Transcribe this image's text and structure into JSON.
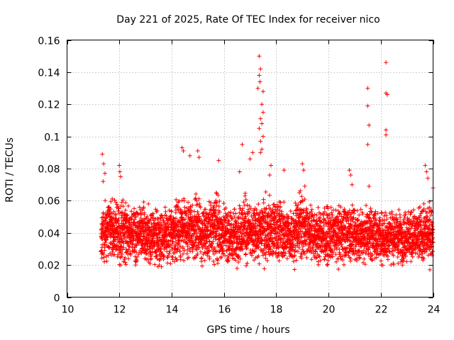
{
  "chart_data": {
    "type": "scatter",
    "title": "Day 221 of 2025, Rate Of TEC Index for receiver nico",
    "xlabel": "GPS time / hours",
    "ylabel": "ROTI / TECUs",
    "xlim": [
      10,
      24
    ],
    "ylim": [
      0,
      0.16
    ],
    "x_ticks": [
      10,
      12,
      14,
      16,
      18,
      20,
      22,
      24
    ],
    "y_ticks": [
      0,
      0.02,
      0.04,
      0.06,
      0.08,
      0.1,
      0.12,
      0.14,
      0.16
    ],
    "x_tick_labels": [
      "10",
      "12",
      "14",
      "16",
      "18",
      "20",
      "22",
      "24"
    ],
    "y_tick_labels": [
      "0",
      "0.02",
      "0.04",
      "0.06",
      "0.08",
      "0.1",
      "0.12",
      "0.14",
      "0.16"
    ],
    "grid": true,
    "marker": "+",
    "color": "#ff0000",
    "data_start_hour": 11.3,
    "data_end_hour": 24.0,
    "typical_range": [
      0.01,
      0.065
    ],
    "series": [
      {
        "name": "ROTI",
        "points": [
          [
            11.35,
            0.089
          ],
          [
            11.4,
            0.083
          ],
          [
            11.45,
            0.077
          ],
          [
            11.38,
            0.072
          ],
          [
            12.0,
            0.082
          ],
          [
            12.02,
            0.078
          ],
          [
            12.05,
            0.075
          ],
          [
            14.4,
            0.093
          ],
          [
            14.45,
            0.091
          ],
          [
            14.7,
            0.088
          ],
          [
            15.0,
            0.091
          ],
          [
            15.05,
            0.087
          ],
          [
            15.8,
            0.085
          ],
          [
            16.7,
            0.095
          ],
          [
            16.6,
            0.078
          ],
          [
            17.1,
            0.09
          ],
          [
            17.0,
            0.086
          ],
          [
            17.35,
            0.15
          ],
          [
            17.4,
            0.142
          ],
          [
            17.35,
            0.138
          ],
          [
            17.3,
            0.13
          ],
          [
            17.38,
            0.134
          ],
          [
            17.5,
            0.128
          ],
          [
            17.45,
            0.12
          ],
          [
            17.5,
            0.115
          ],
          [
            17.4,
            0.111
          ],
          [
            17.45,
            0.108
          ],
          [
            17.35,
            0.105
          ],
          [
            17.5,
            0.1
          ],
          [
            17.4,
            0.097
          ],
          [
            17.45,
            0.092
          ],
          [
            17.4,
            0.09
          ],
          [
            17.8,
            0.082
          ],
          [
            17.75,
            0.076
          ],
          [
            18.3,
            0.079
          ],
          [
            19.0,
            0.083
          ],
          [
            19.05,
            0.079
          ],
          [
            20.8,
            0.079
          ],
          [
            20.85,
            0.076
          ],
          [
            20.9,
            0.07
          ],
          [
            21.5,
            0.13
          ],
          [
            21.5,
            0.119
          ],
          [
            21.55,
            0.107
          ],
          [
            21.5,
            0.095
          ],
          [
            21.55,
            0.069
          ],
          [
            22.2,
            0.146
          ],
          [
            22.2,
            0.127
          ],
          [
            22.25,
            0.126
          ],
          [
            22.2,
            0.104
          ],
          [
            22.2,
            0.101
          ],
          [
            23.7,
            0.082
          ],
          [
            23.75,
            0.078
          ],
          [
            23.8,
            0.074
          ],
          [
            24.0,
            0.068
          ]
        ]
      }
    ]
  }
}
